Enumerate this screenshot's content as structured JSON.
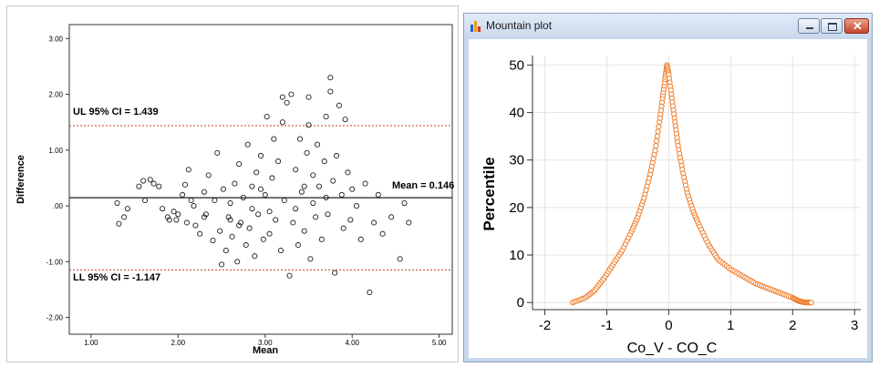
{
  "bland_altman": {
    "xlabel": "Mean",
    "ylabel": "Difference",
    "x_ticks": [
      "1.00",
      "2.00",
      "3.00",
      "4.00",
      "5.00"
    ],
    "y_ticks": [
      "3.00",
      "2.00",
      "1.00",
      ".00",
      "-1.00",
      "-2.00"
    ],
    "ul_label": "UL 95% CI = 1.439",
    "ll_label": "LL 95% CI = -1.147",
    "mean_label": "Mean = 0.146",
    "line_color": "#c0392b"
  },
  "mountain_window": {
    "title": "Mountain plot",
    "xlabel": "Co_V - CO_C",
    "ylabel": "Percentile",
    "x_ticks": [
      "-2",
      "-1",
      "0",
      "1",
      "2",
      "3"
    ],
    "y_ticks": [
      "0",
      "10",
      "20",
      "30",
      "40",
      "50"
    ],
    "series_color": "#f07d2a"
  },
  "chart_data": [
    {
      "type": "scatter",
      "xlabel": "Mean",
      "ylabel": "Difference",
      "xlim": [
        0.75,
        5.15
      ],
      "ylim": [
        -2.3,
        3.25
      ],
      "reference_lines": [
        {
          "label": "UL 95% CI = 1.439",
          "y": 1.439,
          "style": "dashed"
        },
        {
          "label": "Mean = 0.146",
          "y": 0.146,
          "style": "solid"
        },
        {
          "label": "LL 95% CI = -1.147",
          "y": -1.147,
          "style": "dashed"
        }
      ],
      "points": [
        [
          1.3,
          0.05
        ],
        [
          1.32,
          -0.32
        ],
        [
          1.38,
          -0.2
        ],
        [
          1.42,
          -0.05
        ],
        [
          1.55,
          0.35
        ],
        [
          1.6,
          0.45
        ],
        [
          1.62,
          0.1
        ],
        [
          1.68,
          0.47
        ],
        [
          1.72,
          0.4
        ],
        [
          1.78,
          0.35
        ],
        [
          1.82,
          -0.05
        ],
        [
          1.88,
          -0.2
        ],
        [
          1.95,
          -0.1
        ],
        [
          1.98,
          -0.25
        ],
        [
          2.05,
          0.2
        ],
        [
          2.08,
          0.38
        ],
        [
          2.1,
          -0.3
        ],
        [
          2.12,
          0.65
        ],
        [
          2.18,
          0.0
        ],
        [
          2.2,
          -0.35
        ],
        [
          2.25,
          -0.5
        ],
        [
          2.3,
          0.25
        ],
        [
          2.32,
          -0.15
        ],
        [
          2.35,
          0.55
        ],
        [
          2.4,
          -0.62
        ],
        [
          2.42,
          0.1
        ],
        [
          2.45,
          0.95
        ],
        [
          2.48,
          -0.45
        ],
        [
          2.5,
          -1.05
        ],
        [
          2.52,
          0.3
        ],
        [
          2.55,
          -0.8
        ],
        [
          2.58,
          -0.2
        ],
        [
          2.6,
          0.05
        ],
        [
          2.62,
          -0.55
        ],
        [
          2.65,
          0.4
        ],
        [
          2.68,
          -1.0
        ],
        [
          2.7,
          0.75
        ],
        [
          2.72,
          -0.3
        ],
        [
          2.75,
          0.15
        ],
        [
          2.78,
          -0.7
        ],
        [
          2.8,
          1.1
        ],
        [
          2.82,
          -0.4
        ],
        [
          2.85,
          0.35
        ],
        [
          2.88,
          -0.9
        ],
        [
          2.9,
          0.6
        ],
        [
          2.92,
          -0.15
        ],
        [
          2.95,
          0.9
        ],
        [
          2.98,
          -0.6
        ],
        [
          3.0,
          0.2
        ],
        [
          3.02,
          1.6
        ],
        [
          3.05,
          -0.5
        ],
        [
          3.08,
          0.5
        ],
        [
          3.1,
          1.2
        ],
        [
          3.12,
          -0.25
        ],
        [
          3.15,
          0.8
        ],
        [
          3.18,
          -0.8
        ],
        [
          3.2,
          1.5
        ],
        [
          3.22,
          0.1
        ],
        [
          3.25,
          1.85
        ],
        [
          3.28,
          -1.25
        ],
        [
          3.3,
          2.0
        ],
        [
          3.32,
          -0.3
        ],
        [
          3.35,
          0.65
        ],
        [
          3.38,
          -0.7
        ],
        [
          3.4,
          1.2
        ],
        [
          3.42,
          0.25
        ],
        [
          3.45,
          -0.45
        ],
        [
          3.48,
          0.95
        ],
        [
          3.5,
          1.45
        ],
        [
          3.52,
          -0.95
        ],
        [
          3.55,
          0.55
        ],
        [
          3.58,
          -0.2
        ],
        [
          3.6,
          1.1
        ],
        [
          3.62,
          0.35
        ],
        [
          3.65,
          -0.6
        ],
        [
          3.68,
          0.8
        ],
        [
          3.7,
          1.6
        ],
        [
          3.72,
          -0.15
        ],
        [
          3.75,
          2.05
        ],
        [
          3.78,
          0.45
        ],
        [
          3.8,
          -1.2
        ],
        [
          3.82,
          0.9
        ],
        [
          3.85,
          1.8
        ],
        [
          3.88,
          0.2
        ],
        [
          3.9,
          -0.4
        ],
        [
          3.92,
          1.55
        ],
        [
          3.95,
          0.6
        ],
        [
          3.98,
          -0.25
        ],
        [
          4.0,
          0.3
        ],
        [
          4.05,
          0.0
        ],
        [
          4.1,
          -0.6
        ],
        [
          4.15,
          0.4
        ],
        [
          4.2,
          -1.55
        ],
        [
          4.25,
          -0.3
        ],
        [
          4.3,
          0.2
        ],
        [
          4.35,
          -0.5
        ],
        [
          4.45,
          -0.2
        ],
        [
          4.55,
          -0.95
        ],
        [
          4.6,
          0.05
        ],
        [
          4.65,
          -0.3
        ],
        [
          3.75,
          2.3
        ],
        [
          3.5,
          1.95
        ],
        [
          3.2,
          1.95
        ],
        [
          2.7,
          -0.35
        ],
        [
          2.85,
          -0.05
        ],
        [
          3.05,
          -0.1
        ],
        [
          3.35,
          -0.05
        ],
        [
          3.55,
          0.05
        ],
        [
          3.7,
          0.15
        ],
        [
          3.45,
          0.35
        ],
        [
          2.95,
          0.3
        ],
        [
          2.6,
          -0.25
        ],
        [
          2.3,
          -0.2
        ],
        [
          2.15,
          0.1
        ],
        [
          2.0,
          -0.15
        ],
        [
          1.9,
          -0.25
        ]
      ]
    },
    {
      "type": "line",
      "xlabel": "Co_V - CO_C",
      "ylabel": "Percentile",
      "xlim": [
        -2.2,
        3.1
      ],
      "ylim": [
        -1.5,
        52
      ],
      "x": [
        -1.55,
        -1.35,
        -1.2,
        -1.05,
        -0.9,
        -0.75,
        -0.6,
        -0.5,
        -0.4,
        -0.3,
        -0.22,
        -0.15,
        -0.1,
        -0.06,
        -0.03,
        0.0,
        0.05,
        0.1,
        0.15,
        0.22,
        0.3,
        0.4,
        0.5,
        0.65,
        0.8,
        1.0,
        1.2,
        1.4,
        1.6,
        1.8,
        2.0,
        2.1,
        2.2,
        2.3
      ],
      "y": [
        0,
        1,
        2.5,
        5,
        8,
        11,
        15,
        18,
        22,
        27,
        32,
        38,
        43,
        47,
        50,
        48,
        43,
        38,
        33,
        28,
        23,
        19,
        16,
        12,
        9,
        7,
        5.5,
        4,
        3,
        2,
        1,
        0.3,
        0,
        0
      ]
    }
  ]
}
